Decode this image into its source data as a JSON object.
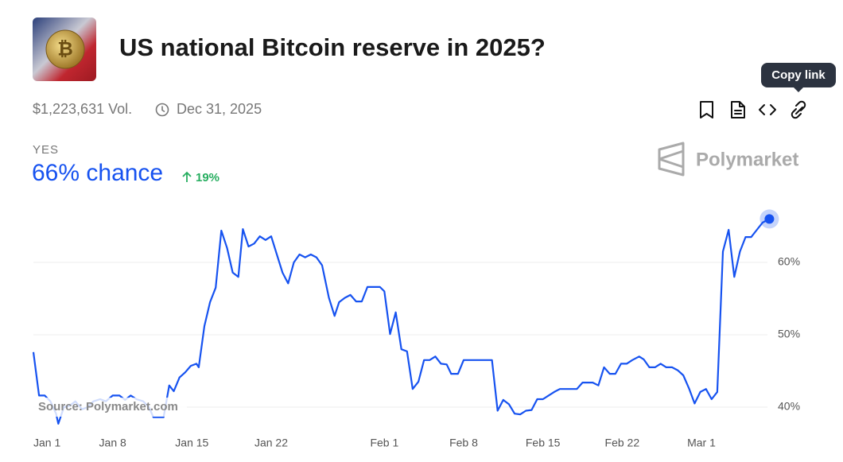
{
  "market": {
    "title": "US national Bitcoin reserve in 2025?",
    "volume": "$1,223,631 Vol.",
    "end_date": "Dec 31, 2025",
    "tooltip": "Copy link",
    "outcome": "YES",
    "chance": "66% chance",
    "change": "19%",
    "brand": "Polymarket"
  },
  "chart_data": {
    "type": "line",
    "color": "#1652f0",
    "source": "Source: Polymarket.com",
    "grid": true,
    "xlim": [
      0,
      66
    ],
    "ylim": [
      37,
      68
    ],
    "xticks": [
      {
        "value": 0,
        "label": "Jan 1"
      },
      {
        "value": 7,
        "label": "Jan 8"
      },
      {
        "value": 14,
        "label": "Jan 15"
      },
      {
        "value": 21,
        "label": "Jan 22"
      },
      {
        "value": 31,
        "label": "Feb 1"
      },
      {
        "value": 38,
        "label": "Feb 8"
      },
      {
        "value": 45,
        "label": "Feb 15"
      },
      {
        "value": 52,
        "label": "Feb 22"
      },
      {
        "value": 59,
        "label": "Mar 1"
      }
    ],
    "yticks": [
      {
        "value": 40,
        "label": "40%"
      },
      {
        "value": 50,
        "label": "50%"
      },
      {
        "value": 60,
        "label": "60%"
      }
    ],
    "x": [
      0.0,
      0.5,
      1.0,
      1.5,
      2.0,
      2.2,
      2.7,
      3.2,
      3.7,
      4.3,
      4.8,
      5.3,
      5.9,
      6.4,
      7.0,
      7.6,
      8.1,
      8.6,
      9.1,
      9.7,
      10.2,
      10.6,
      11.1,
      11.5,
      12.0,
      12.4,
      12.9,
      13.4,
      13.9,
      14.4,
      14.6,
      15.1,
      15.6,
      16.1,
      16.6,
      17.1,
      17.6,
      18.1,
      18.5,
      19.0,
      19.5,
      20.0,
      20.5,
      21.0,
      21.5,
      22.0,
      22.5,
      23.0,
      23.5,
      24.0,
      24.5,
      25.0,
      25.5,
      26.1,
      26.6,
      27.0,
      27.5,
      28.0,
      28.5,
      29.0,
      29.5,
      30.1,
      30.6,
      31.0,
      31.5,
      32.0,
      32.5,
      33.0,
      33.5,
      34.0,
      34.5,
      35.0,
      35.5,
      36.0,
      36.5,
      36.9,
      37.5,
      38.0,
      38.5,
      39.1,
      39.5,
      40.0,
      40.5,
      41.0,
      41.5,
      42.0,
      42.5,
      43.0,
      43.5,
      44.0,
      44.5,
      45.0,
      45.5,
      46.0,
      46.5,
      47.0,
      47.5,
      48.0,
      48.5,
      49.0,
      49.4,
      49.9,
      50.4,
      50.9,
      51.4,
      51.9,
      52.4,
      52.9,
      53.5,
      53.9,
      54.4,
      54.9,
      55.4,
      55.9,
      56.4,
      56.9,
      57.4,
      57.9,
      58.4,
      58.9,
      59.4,
      59.9,
      60.4,
      60.9,
      61.4,
      61.9,
      62.4,
      62.9,
      63.4,
      63.9,
      64.4,
      65.0
    ],
    "values": [
      47.6,
      41.6,
      41.6,
      40.8,
      39.1,
      37.7,
      40.0,
      40.2,
      40.8,
      39.7,
      40.0,
      40.8,
      41.1,
      40.8,
      41.6,
      41.6,
      41.0,
      41.6,
      41.1,
      40.8,
      40.0,
      38.6,
      38.6,
      38.6,
      43.0,
      42.2,
      44.1,
      44.8,
      45.7,
      46.0,
      45.5,
      51.2,
      54.5,
      56.5,
      64.4,
      62.0,
      58.6,
      58.0,
      64.6,
      62.2,
      62.6,
      63.6,
      63.1,
      63.6,
      61.1,
      58.6,
      57.1,
      60.0,
      61.1,
      60.7,
      61.1,
      60.7,
      59.6,
      55.1,
      52.6,
      54.5,
      55.1,
      55.5,
      54.6,
      54.6,
      56.6,
      56.6,
      56.6,
      56.0,
      50.1,
      53.1,
      48.0,
      47.7,
      42.5,
      43.5,
      46.5,
      46.5,
      47.0,
      46.0,
      45.9,
      44.6,
      44.6,
      46.5,
      46.5,
      46.5,
      46.5,
      46.5,
      46.5,
      39.5,
      41.0,
      40.4,
      39.1,
      39.0,
      39.5,
      39.6,
      41.1,
      41.1,
      41.6,
      42.1,
      42.5,
      42.5,
      42.5,
      42.5,
      43.4,
      43.4,
      43.4,
      43.0,
      45.5,
      44.6,
      44.6,
      46.0,
      46.0,
      46.5,
      47.0,
      46.6,
      45.5,
      45.5,
      46.0,
      45.5,
      45.5,
      45.1,
      44.4,
      42.6,
      40.5,
      42.1,
      42.5,
      41.1,
      42.1,
      61.5,
      64.5,
      58.0,
      61.5,
      63.5,
      63.5,
      64.5,
      65.5,
      66.0
    ]
  }
}
